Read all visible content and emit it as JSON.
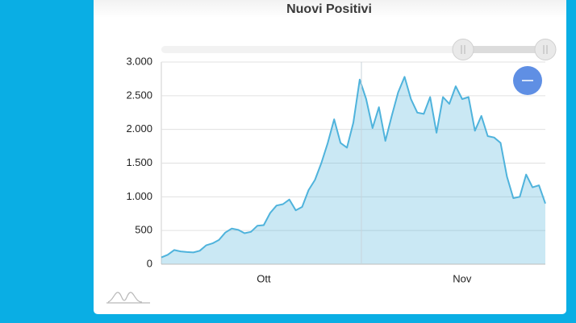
{
  "chart_data": {
    "type": "area",
    "title": "Nuovi Positivi",
    "categories": [
      null,
      null,
      null,
      null,
      null,
      null,
      null,
      null,
      null,
      null,
      null,
      null,
      null,
      null,
      null,
      null,
      "Ott",
      null,
      null,
      null,
      null,
      null,
      null,
      null,
      null,
      null,
      null,
      null,
      null,
      null,
      null,
      null,
      null,
      null,
      null,
      null,
      null,
      null,
      null,
      null,
      null,
      null,
      null,
      null,
      null,
      null,
      null,
      "Nov",
      null,
      null,
      null,
      null,
      null,
      null,
      null,
      null,
      null,
      null,
      null,
      null,
      null
    ],
    "values": [
      100,
      140,
      210,
      190,
      180,
      175,
      200,
      280,
      310,
      360,
      470,
      530,
      510,
      460,
      480,
      570,
      580,
      760,
      870,
      890,
      960,
      800,
      850,
      1100,
      1250,
      1500,
      1800,
      2150,
      1800,
      1730,
      2100,
      2740,
      2450,
      2020,
      2330,
      1830,
      2200,
      2550,
      2780,
      2450,
      2250,
      2230,
      2480,
      1950,
      2480,
      2380,
      2640,
      2450,
      2480,
      1980,
      2200,
      1900,
      1880,
      1800,
      1300,
      980,
      1000,
      1330,
      1140,
      1170,
      900
    ],
    "color": "#4fb3dc",
    "ylim": [
      0,
      3000
    ],
    "yticks": [
      0,
      500,
      {
        "value": 1000,
        "label": "1.000"
      },
      {
        "value": 1500,
        "label": "1.500"
      },
      {
        "value": 2000,
        "label": "2.000"
      },
      {
        "value": 2500,
        "label": "2.500"
      },
      {
        "value": 3000,
        "label": "3.000"
      }
    ],
    "grid": true
  }
}
